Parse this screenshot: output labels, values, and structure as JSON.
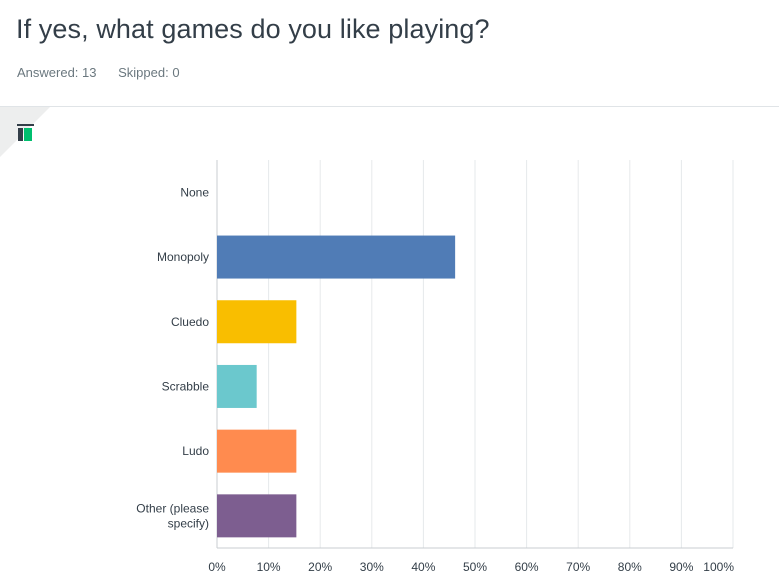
{
  "question": {
    "title": "If yes, what games do you like playing?",
    "answered_label": "Answered: 13",
    "skipped_label": "Skipped: 0"
  },
  "icons": {
    "chart_type_icon": "bar-chart-icon"
  },
  "chart_data": {
    "type": "bar",
    "orientation": "horizontal",
    "categories": [
      "None",
      "Monopoly",
      "Cluedo",
      "Scrabble",
      "Ludo",
      "Other (please specify)"
    ],
    "values": [
      0,
      46.15,
      15.38,
      7.69,
      15.38,
      15.38
    ],
    "value_unit": "%",
    "colors": [
      "#507cb6",
      "#507cb6",
      "#f9be00",
      "#6bc8cd",
      "#ff8b4f",
      "#7d5e90"
    ],
    "xlim": [
      0,
      100
    ],
    "tick_labels": [
      "0%",
      "10%",
      "20%",
      "30%",
      "40%",
      "50%",
      "60%",
      "70%",
      "80%",
      "90%",
      "100%"
    ],
    "grid": true,
    "legend": "none"
  }
}
